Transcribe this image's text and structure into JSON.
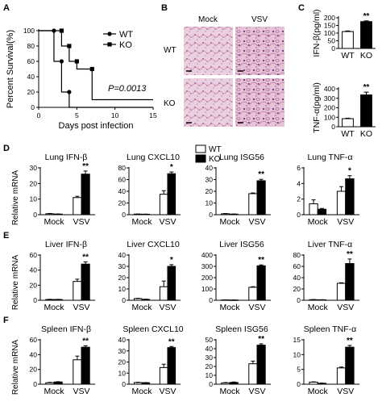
{
  "panels": {
    "A": "A",
    "B": "B",
    "C": "C",
    "D": "D",
    "E": "E",
    "F": "F"
  },
  "legend": {
    "wt": "WT",
    "ko": "KO"
  },
  "histology": {
    "col_mock": "Mock",
    "col_vsv": "VSV",
    "row_wt": "WT",
    "row_ko": "KO",
    "colors": {
      "tissue": "#e9c7d8",
      "stain": "#7e3f86",
      "accent": "#cc8fb0"
    }
  },
  "chart_data": [
    {
      "id": "survival",
      "type": "line",
      "ylabel": "Percent Survival(%)",
      "xlabel": "Days post infection",
      "xlim": [
        0,
        15
      ],
      "ylim": [
        0,
        100
      ],
      "xticks": [
        "0",
        "5",
        "10",
        "15"
      ],
      "yticks": [
        "0",
        "20",
        "40",
        "60",
        "80",
        "100"
      ],
      "annotation": "P=0.0013",
      "series": [
        {
          "name": "WT",
          "marker": "circle",
          "x": [
            0,
            2,
            2,
            3,
            3,
            4,
            4,
            15
          ],
          "y": [
            100,
            100,
            60,
            60,
            20,
            20,
            0,
            0
          ]
        },
        {
          "name": "KO",
          "marker": "square",
          "x": [
            0,
            3,
            3,
            4,
            4,
            5,
            5,
            7,
            7,
            15
          ],
          "y": [
            100,
            100,
            80,
            80,
            60,
            60,
            50,
            50,
            10,
            10
          ]
        }
      ]
    },
    {
      "id": "serum-ifnb",
      "type": "bar",
      "ylabel": "IFN-β(pg/ml)",
      "ylim": [
        0,
        200
      ],
      "yticks": [
        "0",
        "50",
        "100",
        "150",
        "200"
      ],
      "categories": [
        "WT",
        "KO"
      ],
      "values": [
        110,
        175
      ],
      "errors": [
        4,
        5
      ],
      "sig": "**"
    },
    {
      "id": "serum-tnfa",
      "type": "bar",
      "ylabel": "TNF-α(pg/ml)",
      "ylim": [
        0,
        400
      ],
      "yticks": [
        "0",
        "100",
        "200",
        "300",
        "400"
      ],
      "categories": [
        "WT",
        "KO"
      ],
      "values": [
        85,
        335
      ],
      "errors": [
        5,
        30
      ],
      "sig": "**"
    },
    {
      "id": "lung-ifnb",
      "type": "bar",
      "title": "Lung IFN-β",
      "ylim": [
        0,
        30
      ],
      "yticks": [
        "0",
        "10",
        "20",
        "30"
      ],
      "categories": [
        "Mock",
        "VSV"
      ],
      "wt": [
        0.6,
        11
      ],
      "ko": [
        0.4,
        26
      ],
      "wt_err": [
        0.2,
        0.8
      ],
      "ko_err": [
        0.1,
        2.0
      ],
      "sig": "**"
    },
    {
      "id": "lung-cxcl10",
      "type": "bar",
      "title": "Lung CXCL10",
      "ylim": [
        0,
        80
      ],
      "yticks": [
        "0",
        "20",
        "40",
        "60",
        "80"
      ],
      "categories": [
        "Mock",
        "VSV"
      ],
      "wt": [
        1,
        35
      ],
      "ko": [
        0.8,
        70
      ],
      "wt_err": [
        0.2,
        6
      ],
      "ko_err": [
        0.2,
        3
      ],
      "sig": "*"
    },
    {
      "id": "lung-isg56",
      "type": "bar",
      "title": "Lung ISG56",
      "ylim": [
        0,
        40
      ],
      "yticks": [
        "0",
        "10",
        "20",
        "30",
        "40"
      ],
      "categories": [
        "Mock",
        "VSV"
      ],
      "wt": [
        0.8,
        18
      ],
      "ko": [
        0.5,
        29
      ],
      "wt_err": [
        0.2,
        0.6
      ],
      "ko_err": [
        0.1,
        1.2
      ],
      "sig": "**"
    },
    {
      "id": "lung-tnfa",
      "type": "bar",
      "title": "Lung TNF-α",
      "ylim": [
        0,
        6
      ],
      "yticks": [
        "0",
        "2",
        "4",
        "6"
      ],
      "categories": [
        "Mock",
        "VSV"
      ],
      "wt": [
        1.4,
        3.0
      ],
      "ko": [
        0.7,
        4.6
      ],
      "wt_err": [
        0.5,
        0.6
      ],
      "ko_err": [
        0.1,
        0.4
      ],
      "sig": "*"
    },
    {
      "id": "liver-ifnb",
      "type": "bar",
      "title": "Liver IFN-β",
      "ylim": [
        0,
        60
      ],
      "yticks": [
        "0",
        "20",
        "40",
        "60"
      ],
      "categories": [
        "Mock",
        "VSV"
      ],
      "wt": [
        1,
        25
      ],
      "ko": [
        1,
        48
      ],
      "wt_err": [
        0.3,
        3
      ],
      "ko_err": [
        0.2,
        3
      ],
      "sig": "**"
    },
    {
      "id": "liver-cxcl10",
      "type": "bar",
      "title": "Liver CXCL10",
      "ylim": [
        0,
        40
      ],
      "yticks": [
        "0",
        "10",
        "20",
        "30",
        "40"
      ],
      "categories": [
        "Mock",
        "VSV"
      ],
      "wt": [
        1.5,
        12
      ],
      "ko": [
        0.8,
        30
      ],
      "wt_err": [
        0.3,
        5
      ],
      "ko_err": [
        0.2,
        1.5
      ],
      "sig": "*"
    },
    {
      "id": "liver-isg56",
      "type": "bar",
      "title": "Liver ISG56",
      "ylim": [
        0,
        400
      ],
      "yticks": [
        "0",
        "100",
        "200",
        "300",
        "400"
      ],
      "categories": [
        "Mock",
        "VSV"
      ],
      "wt": [
        3,
        115
      ],
      "ko": [
        2,
        305
      ],
      "wt_err": [
        1,
        5
      ],
      "ko_err": [
        1,
        8
      ],
      "sig": "**"
    },
    {
      "id": "liver-tnfa",
      "type": "bar",
      "title": "Liver TNF-α",
      "ylim": [
        0,
        80
      ],
      "yticks": [
        "0",
        "20",
        "40",
        "60",
        "80"
      ],
      "categories": [
        "Mock",
        "VSV"
      ],
      "wt": [
        1,
        30
      ],
      "ko": [
        0.8,
        65
      ],
      "wt_err": [
        0.3,
        1
      ],
      "ko_err": [
        0.2,
        8
      ],
      "sig": "**"
    },
    {
      "id": "spleen-ifnb",
      "type": "bar",
      "title": "Spleen IFN-β",
      "ylim": [
        0,
        60
      ],
      "yticks": [
        "0",
        "20",
        "40",
        "60"
      ],
      "categories": [
        "Mock",
        "VSV"
      ],
      "wt": [
        2,
        33
      ],
      "ko": [
        3,
        50
      ],
      "wt_err": [
        0.5,
        5
      ],
      "ko_err": [
        0.4,
        2
      ],
      "sig": "**"
    },
    {
      "id": "spleen-cxcl10",
      "type": "bar",
      "title": "Spleen CXCL10",
      "ylim": [
        0,
        40
      ],
      "yticks": [
        "0",
        "10",
        "20",
        "30",
        "40"
      ],
      "categories": [
        "Mock",
        "VSV"
      ],
      "wt": [
        1.5,
        15
      ],
      "ko": [
        1.3,
        33
      ],
      "wt_err": [
        0.3,
        3
      ],
      "ko_err": [
        0.2,
        1
      ],
      "sig": "**"
    },
    {
      "id": "spleen-isg56",
      "type": "bar",
      "title": "Spleen ISG56",
      "ylim": [
        0,
        50
      ],
      "yticks": [
        "0",
        "10",
        "20",
        "30",
        "40",
        "50"
      ],
      "categories": [
        "Mock",
        "VSV"
      ],
      "wt": [
        1.5,
        23
      ],
      "ko": [
        2,
        44
      ],
      "wt_err": [
        0.4,
        3
      ],
      "ko_err": [
        0.5,
        1.5
      ],
      "sig": "**"
    },
    {
      "id": "spleen-tnfa",
      "type": "bar",
      "title": "Spleen TNF-α",
      "ylim": [
        0,
        15
      ],
      "yticks": [
        "0",
        "5",
        "10",
        "15"
      ],
      "categories": [
        "Mock",
        "VSV"
      ],
      "wt": [
        0.7,
        5.5
      ],
      "ko": [
        0.3,
        12.5
      ],
      "wt_err": [
        0.1,
        0.3
      ],
      "ko_err": [
        0.1,
        0.6
      ],
      "sig": "**"
    }
  ],
  "row_ylabel": "Relative mRNA"
}
